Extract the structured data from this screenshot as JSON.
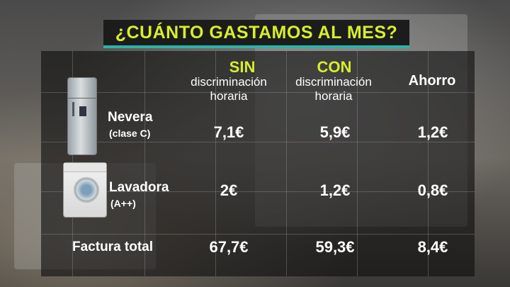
{
  "title": "¿CUÁNTO GASTAMOS AL MES?",
  "columns": [
    {
      "main": "SIN",
      "sub1": "discriminación",
      "sub2": "horaria"
    },
    {
      "main": "CON",
      "sub1": "discriminación",
      "sub2": "horaria"
    },
    {
      "main": "Ahorro"
    }
  ],
  "rows": [
    {
      "label": "Nevera",
      "sublabel": "(clase C)",
      "sin": "7,1€",
      "con": "5,9€",
      "ahorro": "1,2€",
      "icon": "fridge-icon"
    },
    {
      "label": "Lavadora",
      "sublabel": "(A++)",
      "sin": "2€",
      "con": "1,2€",
      "ahorro": "0,8€",
      "icon": "washing-machine-icon"
    },
    {
      "label": "Factura total",
      "sin": "67,7€",
      "con": "59,3€",
      "ahorro": "8,4€"
    }
  ],
  "colors": {
    "accent": "#d6ef2b",
    "underline": "#2ab3a8"
  }
}
